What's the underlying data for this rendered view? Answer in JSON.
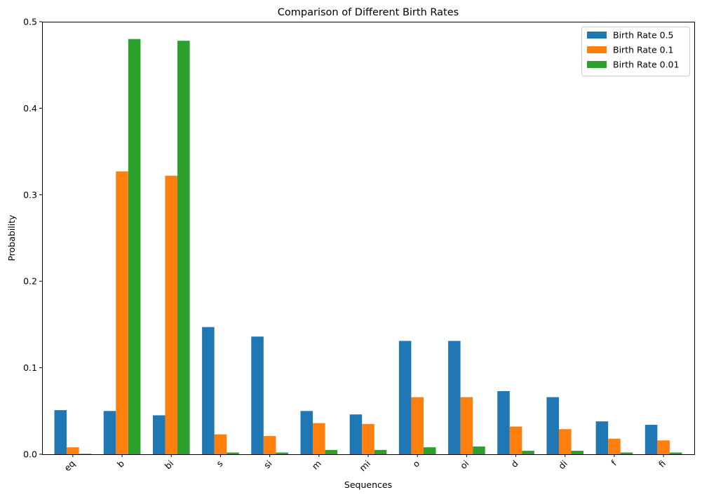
{
  "chart_data": {
    "type": "bar",
    "title": "Comparison of Different Birth Rates",
    "xlabel": "Sequences",
    "ylabel": "Probability",
    "categories": [
      "eq",
      "b",
      "bi",
      "s",
      "si",
      "m",
      "mi",
      "o",
      "oi",
      "d",
      "di",
      "f",
      "fi"
    ],
    "series": [
      {
        "name": "Birth Rate 0.5",
        "color": "#1f77b4",
        "values": [
          0.051,
          0.05,
          0.045,
          0.147,
          0.136,
          0.05,
          0.046,
          0.131,
          0.131,
          0.073,
          0.066,
          0.038,
          0.034
        ]
      },
      {
        "name": "Birth Rate 0.1",
        "color": "#ff7f0e",
        "values": [
          0.008,
          0.327,
          0.322,
          0.023,
          0.021,
          0.036,
          0.035,
          0.066,
          0.066,
          0.032,
          0.029,
          0.018,
          0.016
        ]
      },
      {
        "name": "Birth Rate 0.01",
        "color": "#2ca02c",
        "values": [
          0.0005,
          0.48,
          0.478,
          0.002,
          0.002,
          0.005,
          0.005,
          0.008,
          0.009,
          0.004,
          0.004,
          0.002,
          0.002
        ]
      }
    ],
    "ylim": [
      0,
      0.5
    ],
    "yticks": [
      0.0,
      0.1,
      0.2,
      0.3,
      0.4,
      0.5
    ],
    "ytick_labels": [
      "0.0",
      "0.1",
      "0.2",
      "0.3",
      "0.4",
      "0.5"
    ],
    "xtick_rotation": 45,
    "grid": false,
    "legend_position": "top-right"
  }
}
